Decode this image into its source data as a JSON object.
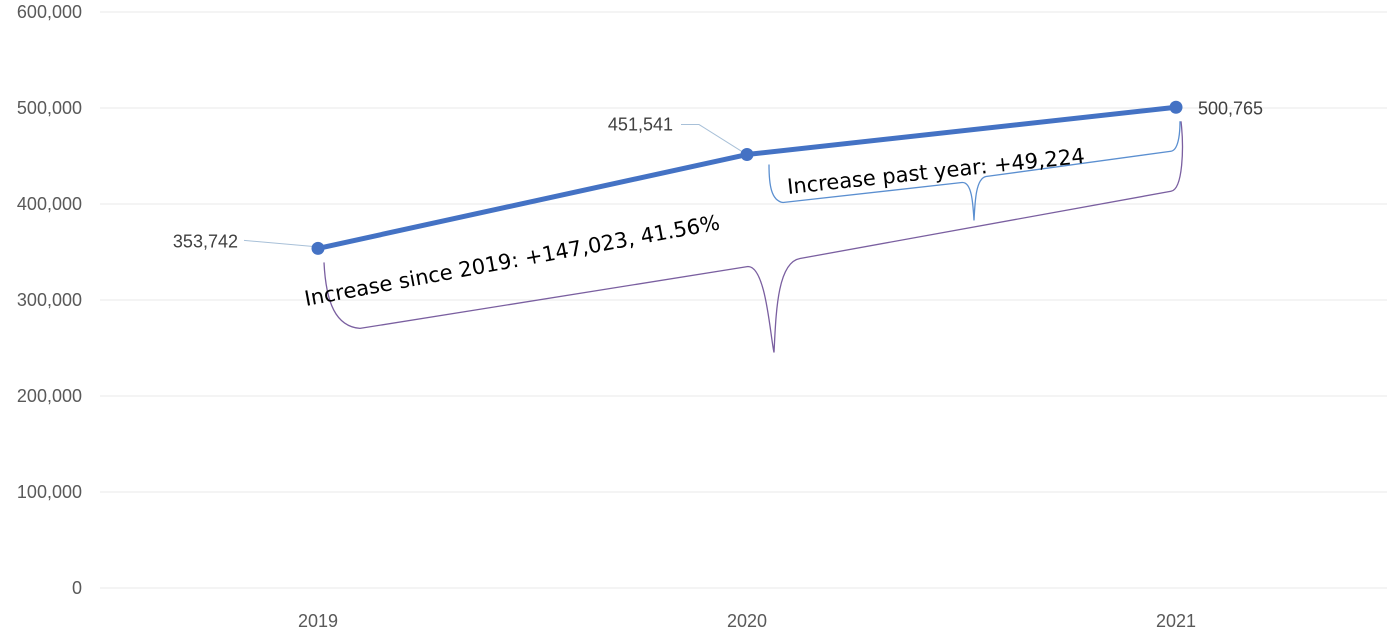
{
  "chart_data": {
    "type": "line",
    "x": [
      "2019",
      "2020",
      "2021"
    ],
    "values": [
      353742,
      451541,
      500765
    ],
    "value_labels": [
      "353,742",
      "451,541",
      "500,765"
    ],
    "ylim": [
      0,
      600000
    ],
    "y_ticks": [
      0,
      100000,
      200000,
      300000,
      400000,
      500000,
      600000
    ],
    "y_tick_labels": [
      "0",
      "100,000",
      "200,000",
      "300,000",
      "400,000",
      "500,000",
      "600,000"
    ],
    "grid": true,
    "line_color": "#4472c4",
    "annotations": [
      {
        "text": "Increase since 2019: +147,023, 41.56%",
        "from": "2019",
        "to": "2021",
        "color": "#7a5fa0"
      },
      {
        "text": "Increase past year: +49,224",
        "from": "2020",
        "to": "2021",
        "color": "#5b8fd0"
      }
    ]
  }
}
